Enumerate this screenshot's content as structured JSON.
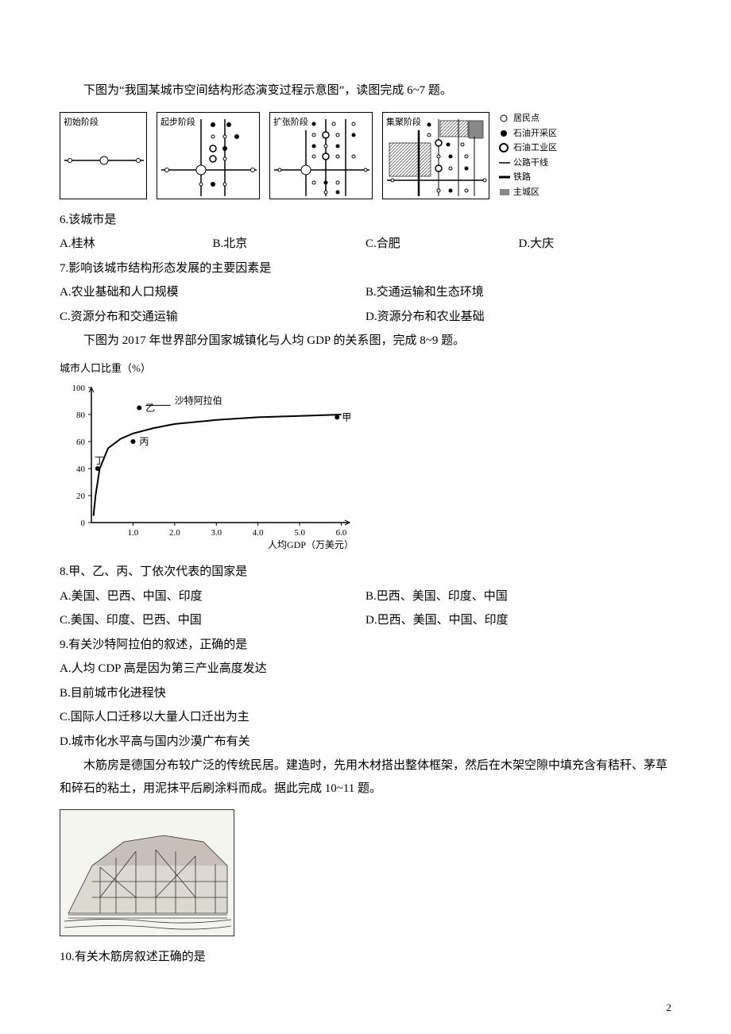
{
  "intro1": "下图为“我国某城市空间结构形态演变过程示意图”，读图完成 6~7 题。",
  "stages": {
    "s1": "初始阶段",
    "s2": "起步阶段",
    "s3": "扩张阶段",
    "s4": "集聚阶段"
  },
  "legend": {
    "l1": "居民点",
    "l2": "石油开采区",
    "l3": "石油工业区",
    "l4": "公路干线",
    "l5": "铁路",
    "l6": "主城区"
  },
  "q6": {
    "stem": "6.该城市是",
    "A": "A.桂林",
    "B": "B.北京",
    "C": "C.合肥",
    "D": "D.大庆"
  },
  "q7": {
    "stem": "7.影响该城市结构形态发展的主要因素是",
    "A": "A.农业基础和人口规模",
    "B": "B.交通运输和生态环境",
    "C": "C.资源分布和交通运输",
    "D": "D.资源分布和农业基础"
  },
  "intro2": "下图为 2017 年世界部分国家城镇化与人均 GDP 的关系图，完成 8~9 题。",
  "chart": {
    "title": "城市人口比重（%）",
    "ylabel_ticks": [
      "0",
      "20",
      "40",
      "60",
      "80",
      "100"
    ],
    "xlabel_ticks": [
      "1.0",
      "2.0",
      "3.0",
      "4.0",
      "5.0",
      "6.0"
    ],
    "xlabel": "人均GDP（万美元）",
    "saudi": "沙特阿拉伯",
    "pts": {
      "jia": "甲",
      "yi": "乙",
      "bing": "丙",
      "ding": "丁"
    },
    "curve_data": [
      [
        0.05,
        5
      ],
      [
        0.1,
        20
      ],
      [
        0.2,
        40
      ],
      [
        0.4,
        55
      ],
      [
        0.7,
        62
      ],
      [
        1.0,
        66
      ],
      [
        1.5,
        70
      ],
      [
        2.0,
        73
      ],
      [
        3.0,
        76
      ],
      [
        4.0,
        78
      ],
      [
        5.0,
        79
      ],
      [
        6.0,
        80
      ]
    ],
    "points": {
      "jia": {
        "x": 5.9,
        "y": 78
      },
      "yi": {
        "x": 1.15,
        "y": 85
      },
      "bing": {
        "x": 1.0,
        "y": 60
      },
      "ding": {
        "x": 0.15,
        "y": 40
      },
      "saudi_arrow": {
        "x": 1.9,
        "y": 88
      }
    },
    "colors": {
      "axis": "#000000",
      "curve": "#000000",
      "point": "#000000",
      "text": "#000000"
    }
  },
  "q8": {
    "stem": "8.甲、乙、丙、丁依次代表的国家是",
    "A": "A.美国、巴西、中国、印度",
    "B": "B.巴西、美国、印度、中国",
    "C": "C.美国、印度、巴西、中国",
    "D": "D.巴西、美国、中国、印度"
  },
  "q9": {
    "stem": "9.有关沙特阿拉伯的叙述，正确的是",
    "A": "A.人均 CDP 高是因为第三产业高度发达",
    "B": "B.目前城市化进程快",
    "C": "C.国际人口迁移以大量人口迁出为主",
    "D": "D.城市化水平高与国内沙漠广布有关"
  },
  "intro3": "木筋房是德国分布较广泛的传统民居。建造时，先用木材搭出整体框架，然后在木架空隙中填充含有秸秆、茅草和碎石的粘土，用泥抹平后刷涂料而成。据此完成 10~11 题。",
  "q10": {
    "stem": "10.有关木筋房叙述正确的是"
  },
  "page": "2"
}
